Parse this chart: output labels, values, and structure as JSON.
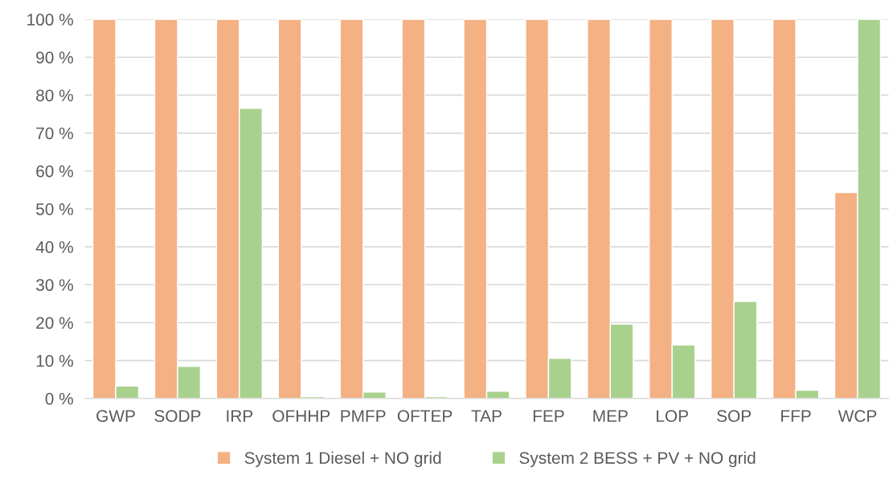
{
  "chart_data": {
    "type": "bar",
    "categories": [
      "GWP",
      "SODP",
      "IRP",
      "OFHHP",
      "PMFP",
      "OFTEP",
      "TAP",
      "FEP",
      "MEP",
      "LOP",
      "SOP",
      "FFP",
      "WCP"
    ],
    "series": [
      {
        "name": "System 1 Diesel + NO grid",
        "color": "#f4b183",
        "values": [
          100,
          100,
          100,
          100,
          100,
          100,
          100,
          100,
          100,
          100,
          100,
          100,
          54.3
        ]
      },
      {
        "name": "System 2 BESS + PV + NO grid",
        "color": "#a9d18e",
        "values": [
          3.3,
          8.5,
          76.5,
          0.5,
          1.7,
          0.5,
          1.9,
          10.6,
          19.6,
          14.1,
          25.6,
          2.2,
          100
        ]
      }
    ],
    "ylim": [
      0,
      100
    ],
    "yticks": [
      {
        "value": 0,
        "label": "0 %"
      },
      {
        "value": 10,
        "label": "10 %"
      },
      {
        "value": 20,
        "label": "20 %"
      },
      {
        "value": 30,
        "label": "30 %"
      },
      {
        "value": 40,
        "label": "40 %"
      },
      {
        "value": 50,
        "label": "50 %"
      },
      {
        "value": 60,
        "label": "60 %"
      },
      {
        "value": 70,
        "label": "70 %"
      },
      {
        "value": 80,
        "label": "80 %"
      },
      {
        "value": 90,
        "label": "90 %"
      },
      {
        "value": 100,
        "label": "100 %"
      }
    ],
    "grid": "y",
    "legend": "bottom"
  }
}
